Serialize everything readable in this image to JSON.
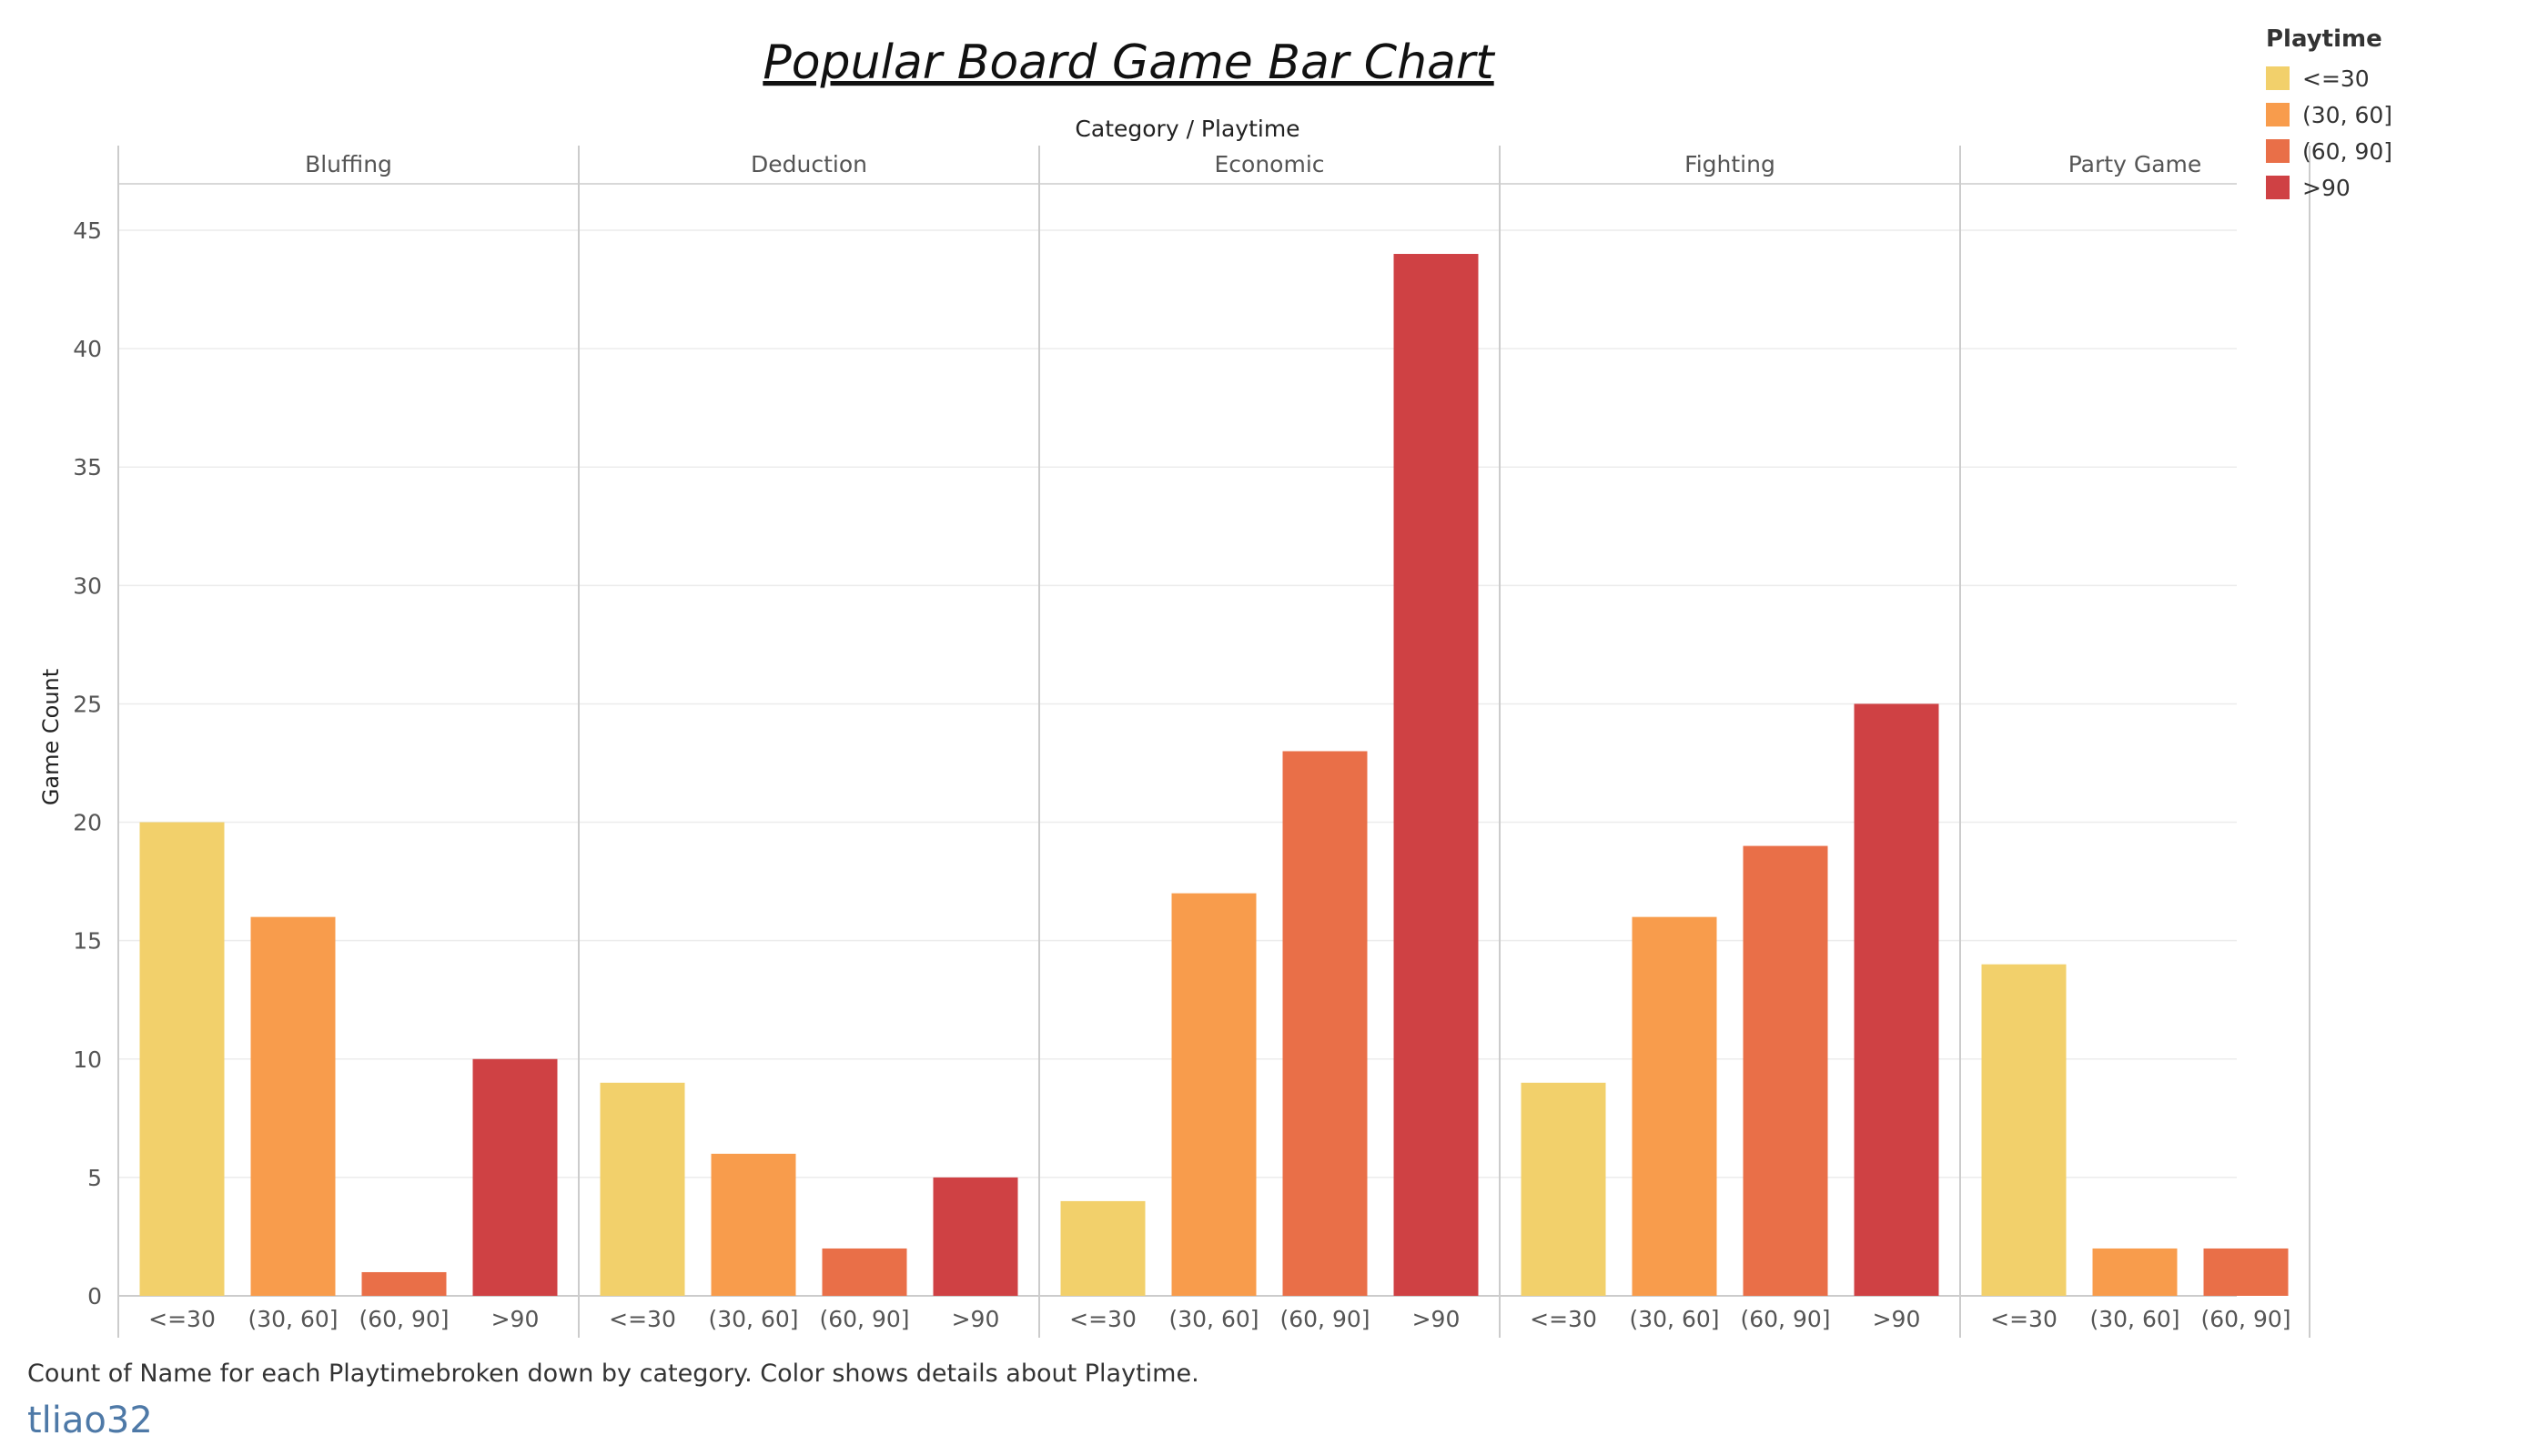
{
  "chart_data": {
    "type": "bar",
    "title": "Popular Board Game Bar Chart",
    "header_label": "Category / Playtime",
    "ylabel": "Game Count",
    "ylim": [
      0,
      47
    ],
    "yticks": [
      0,
      5,
      10,
      15,
      20,
      25,
      30,
      35,
      40,
      45
    ],
    "grid": true,
    "legend_position": "top-right",
    "legend": {
      "title": "Playtime",
      "items": [
        {
          "label": "<=30",
          "color": "#f2d06b"
        },
        {
          "label": "(30, 60]",
          "color": "#f89c4c"
        },
        {
          "label": "(60, 90]",
          "color": "#e96f48"
        },
        {
          "label": ">90",
          "color": "#cf4144"
        }
      ]
    },
    "panels": [
      {
        "category": "Bluffing",
        "bars": [
          {
            "label": "<=30",
            "value": 20
          },
          {
            "label": "(30, 60]",
            "value": 16
          },
          {
            "label": "(60, 90]",
            "value": 1
          },
          {
            "label": ">90",
            "value": 10
          }
        ]
      },
      {
        "category": "Deduction",
        "bars": [
          {
            "label": "<=30",
            "value": 9
          },
          {
            "label": "(30, 60]",
            "value": 6
          },
          {
            "label": "(60, 90]",
            "value": 2
          },
          {
            "label": ">90",
            "value": 5
          }
        ]
      },
      {
        "category": "Economic",
        "bars": [
          {
            "label": "<=30",
            "value": 4
          },
          {
            "label": "(30, 60]",
            "value": 17
          },
          {
            "label": "(60, 90]",
            "value": 23
          },
          {
            "label": ">90",
            "value": 44
          }
        ]
      },
      {
        "category": "Fighting",
        "bars": [
          {
            "label": "<=30",
            "value": 9
          },
          {
            "label": "(30, 60]",
            "value": 16
          },
          {
            "label": "(60, 90]",
            "value": 19
          },
          {
            "label": ">90",
            "value": 25
          }
        ]
      },
      {
        "category": "Party Game",
        "bars": [
          {
            "label": "<=30",
            "value": 14
          },
          {
            "label": "(30, 60]",
            "value": 2
          },
          {
            "label": "(60, 90]",
            "value": 2
          }
        ]
      }
    ]
  },
  "caption": "Count of Name for each Playtimebroken down by category. Color shows details about Playtime.",
  "author": "tliao32"
}
